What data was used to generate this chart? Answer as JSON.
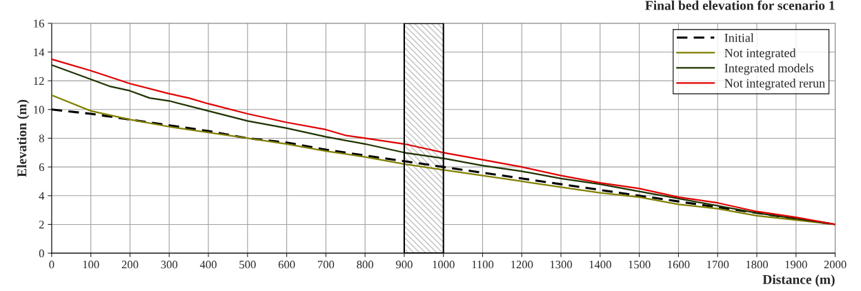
{
  "chart_data": {
    "type": "line",
    "title": "Final bed elevation for scenario 1",
    "xlabel": "Distance (m)",
    "ylabel": "Elevation (m)",
    "xlim": [
      0,
      2000
    ],
    "xticks": [
      0,
      100,
      200,
      300,
      400,
      500,
      600,
      700,
      800,
      900,
      1000,
      1100,
      1200,
      1300,
      1400,
      1500,
      1600,
      1700,
      1800,
      1900,
      2000
    ],
    "ylim": [
      0,
      16
    ],
    "yticks": [
      0,
      2,
      4,
      6,
      8,
      10,
      12,
      14,
      16
    ],
    "grid": true,
    "legend": "top right",
    "marker": "none",
    "bands": [
      {
        "axis": "x",
        "from": 900,
        "to": 1000,
        "color": "#bfbfbf"
      }
    ],
    "series": [
      {
        "name": "Initial",
        "color": "#000000",
        "line_style": "dashed",
        "x": [
          0,
          100,
          200,
          300,
          400,
          500,
          600,
          700,
          800,
          900,
          1000,
          1100,
          1200,
          1300,
          1400,
          1500,
          1600,
          1700,
          1800,
          1900,
          2000
        ],
        "values": [
          10,
          9.7,
          9.3,
          8.9,
          8.5,
          8.0,
          7.7,
          7.2,
          6.8,
          6.4,
          6.0,
          5.6,
          5.2,
          4.8,
          4.4,
          4.0,
          3.6,
          3.2,
          2.8,
          2.4,
          2.0
        ]
      },
      {
        "name": "Not integrated",
        "color": "#808000",
        "line_style": "solid",
        "x": [
          0,
          100,
          200,
          300,
          400,
          500,
          600,
          700,
          800,
          900,
          1000,
          1100,
          1200,
          1300,
          1400,
          1500,
          1600,
          1700,
          1800,
          1900,
          2000
        ],
        "values": [
          11,
          9.9,
          9.3,
          8.8,
          8.4,
          8.0,
          7.6,
          7.1,
          6.7,
          6.2,
          5.8,
          5.4,
          5.0,
          4.6,
          4.2,
          3.9,
          3.4,
          3.1,
          2.6,
          2.3,
          2.0
        ]
      },
      {
        "name": "Integrated models",
        "color": "#1f3300",
        "line_style": "solid",
        "x": [
          0,
          100,
          150,
          200,
          250,
          300,
          400,
          500,
          600,
          700,
          800,
          900,
          1000,
          1100,
          1200,
          1300,
          1400,
          1500,
          1600,
          1700,
          1800,
          1900,
          2000
        ],
        "values": [
          13.1,
          12.1,
          11.6,
          11.3,
          10.8,
          10.6,
          9.9,
          9.2,
          8.7,
          8.1,
          7.6,
          7.0,
          6.6,
          6.1,
          5.7,
          5.2,
          4.8,
          4.3,
          3.8,
          3.3,
          2.8,
          2.4,
          2.0
        ]
      },
      {
        "name": "Not integrated rerun",
        "color": "#e00000",
        "line_style": "solid",
        "x": [
          0,
          100,
          200,
          300,
          350,
          400,
          500,
          600,
          700,
          750,
          800,
          900,
          1000,
          1100,
          1200,
          1300,
          1400,
          1500,
          1600,
          1700,
          1800,
          1900,
          2000
        ],
        "values": [
          13.5,
          12.7,
          11.8,
          11.1,
          10.8,
          10.4,
          9.7,
          9.1,
          8.6,
          8.2,
          8.0,
          7.6,
          7.0,
          6.5,
          6.0,
          5.4,
          4.9,
          4.5,
          3.9,
          3.5,
          2.9,
          2.5,
          2.0
        ]
      }
    ]
  }
}
